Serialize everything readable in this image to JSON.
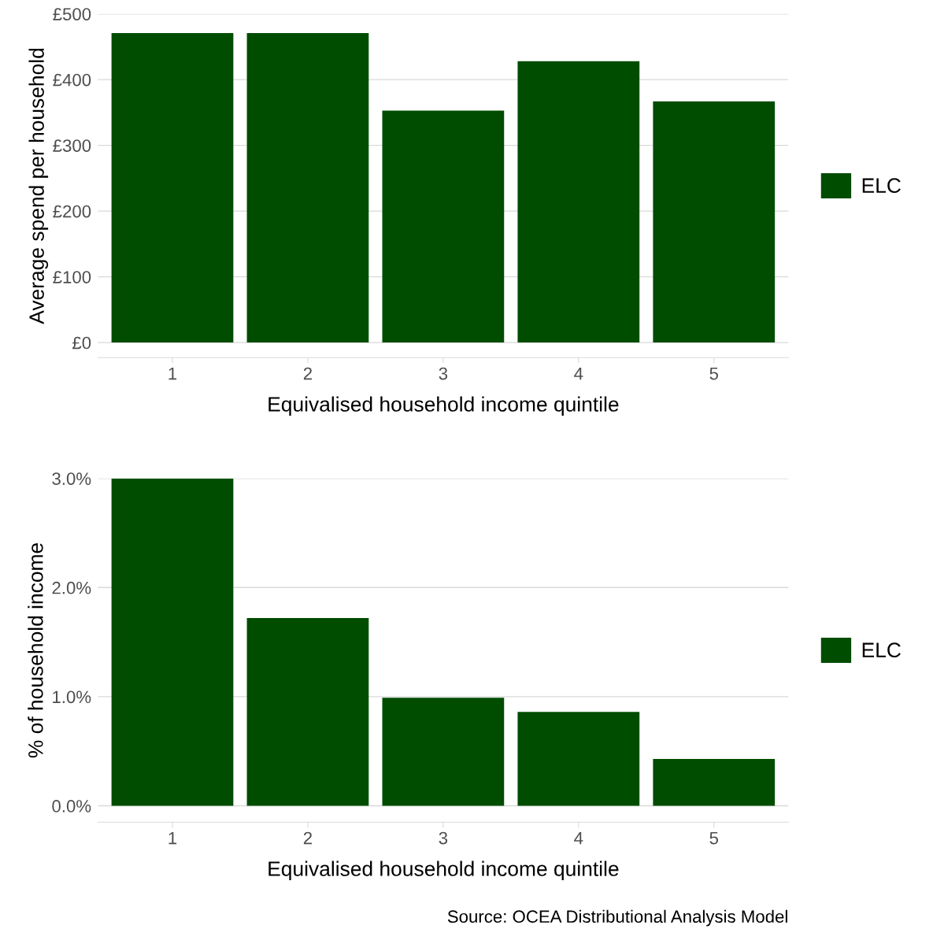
{
  "chart_data": [
    {
      "type": "bar",
      "xlabel": "Equivalised household income quintile",
      "ylabel": "Average spend per household",
      "categories": [
        "1",
        "2",
        "3",
        "4",
        "5"
      ],
      "series": [
        {
          "name": "ELC",
          "color": "#004d00",
          "values": [
            471,
            471,
            353,
            428,
            367
          ]
        }
      ],
      "ylim": [
        -23,
        500
      ],
      "yticks": [
        {
          "value": 0,
          "label": "£0"
        },
        {
          "value": 100,
          "label": "£100"
        },
        {
          "value": 200,
          "label": "£200"
        },
        {
          "value": 300,
          "label": "£300"
        },
        {
          "value": 400,
          "label": "£400"
        },
        {
          "value": 500,
          "label": "£500"
        }
      ],
      "grid": "y",
      "legend": "right"
    },
    {
      "type": "bar",
      "xlabel": "Equivalised household income quintile",
      "ylabel": "% of household income",
      "categories": [
        "1",
        "2",
        "3",
        "4",
        "5"
      ],
      "series": [
        {
          "name": "ELC",
          "color": "#004d00",
          "values": [
            3.0,
            1.72,
            0.99,
            0.86,
            0.43
          ]
        }
      ],
      "ylim": [
        -0.15,
        3.0
      ],
      "yticks": [
        {
          "value": 0,
          "label": "0.0%"
        },
        {
          "value": 1,
          "label": "1.0%"
        },
        {
          "value": 2,
          "label": "2.0%"
        },
        {
          "value": 3,
          "label": "3.0%"
        }
      ],
      "grid": "y",
      "legend": "right",
      "annotations": [
        "Source: OCEA Distributional Analysis Model"
      ]
    }
  ]
}
